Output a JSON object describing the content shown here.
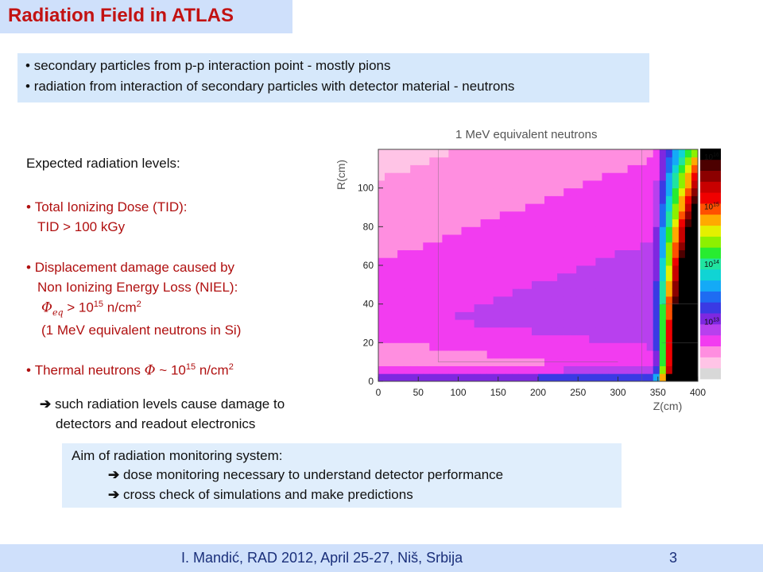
{
  "header": {
    "title": "Radiation Field in ATLAS"
  },
  "intro": {
    "bullets": [
      "secondary particles from p-p interaction point  - mostly pions",
      "radiation from interaction of secondary particles with detector material - neutrons"
    ]
  },
  "left": {
    "heading": "Expected radiation levels:",
    "tid_label": "Total Ionizing Dose (TID):",
    "tid_value": "TID > 100 kGy",
    "niel_label_1": "Displacement damage caused by",
    "niel_label_2": "Non Ionizing Energy Loss (NIEL):",
    "phi_symbol": "Φ",
    "phi_sub": "eq",
    "phi_relation": " > 10",
    "phi_exp": "15",
    "phi_unit": " n/cm",
    "phi_unit_exp": "2",
    "niel_note": "(1 MeV  equivalent neutrons in Si)",
    "thermal_label": "Thermal neutrons ",
    "thermal_symbol": "Φ",
    "thermal_relation": " ~ 10",
    "thermal_exp": "15",
    "thermal_unit": " n/cm",
    "thermal_unit_exp": "2",
    "conclusion_1": " such radiation levels cause damage to",
    "conclusion_2": "detectors and readout electronics"
  },
  "aim": {
    "heading": "Aim of radiation monitoring system:",
    "items": [
      " dose monitoring necessary to understand detector performance",
      " cross check of simulations and make predictions"
    ]
  },
  "footer": {
    "text": "I. Mandić, RAD 2012, April 25-27, Niš, Srbija",
    "page": "3"
  },
  "chart_data": {
    "type": "heatmap",
    "title": "1 MeV equivalent neutrons",
    "xlabel": "Z(cm)",
    "ylabel": "R(cm)",
    "xlim": [
      0,
      400
    ],
    "ylim": [
      0,
      120
    ],
    "x_ticks": [
      "0",
      "50",
      "100",
      "150",
      "200",
      "250",
      "300",
      "350",
      "400"
    ],
    "y_ticks": [
      "0",
      "20",
      "40",
      "60",
      "80",
      "100"
    ],
    "colorbar": {
      "scale": "log",
      "range": [
        1000000000000.0,
        1e+16
      ],
      "tick_labels": [
        {
          "base": "10",
          "exp": "13",
          "value": 10000000000000.0
        },
        {
          "base": "10",
          "exp": "14",
          "value": 100000000000000.0
        },
        {
          "base": "10",
          "exp": "15",
          "value": 1000000000000000.0
        },
        {
          "base": "10",
          "exp": "16",
          "value": 1e+16
        }
      ],
      "colors": [
        "#d8d8d8",
        "#ffc4e6",
        "#ff8ee0",
        "#f23cf0",
        "#b840ee",
        "#7e28e0",
        "#3a3ae4",
        "#1e6cf2",
        "#14aaf6",
        "#10d4d4",
        "#20e4a0",
        "#28ec30",
        "#8cf000",
        "#e4f000",
        "#ffaa00",
        "#ff5000",
        "#f00000",
        "#c80000",
        "#8c0000",
        "#4c0000",
        "#000000"
      ]
    },
    "field_model": {
      "description_free": true,
      "base_log10": 12.85,
      "radial_coeff": 0.0045,
      "z_onset": 345,
      "z_slope": 0.14,
      "beam_hot_R": 8
    },
    "colors": {
      "accent": "#c21212",
      "text_dark": "#111111"
    }
  }
}
